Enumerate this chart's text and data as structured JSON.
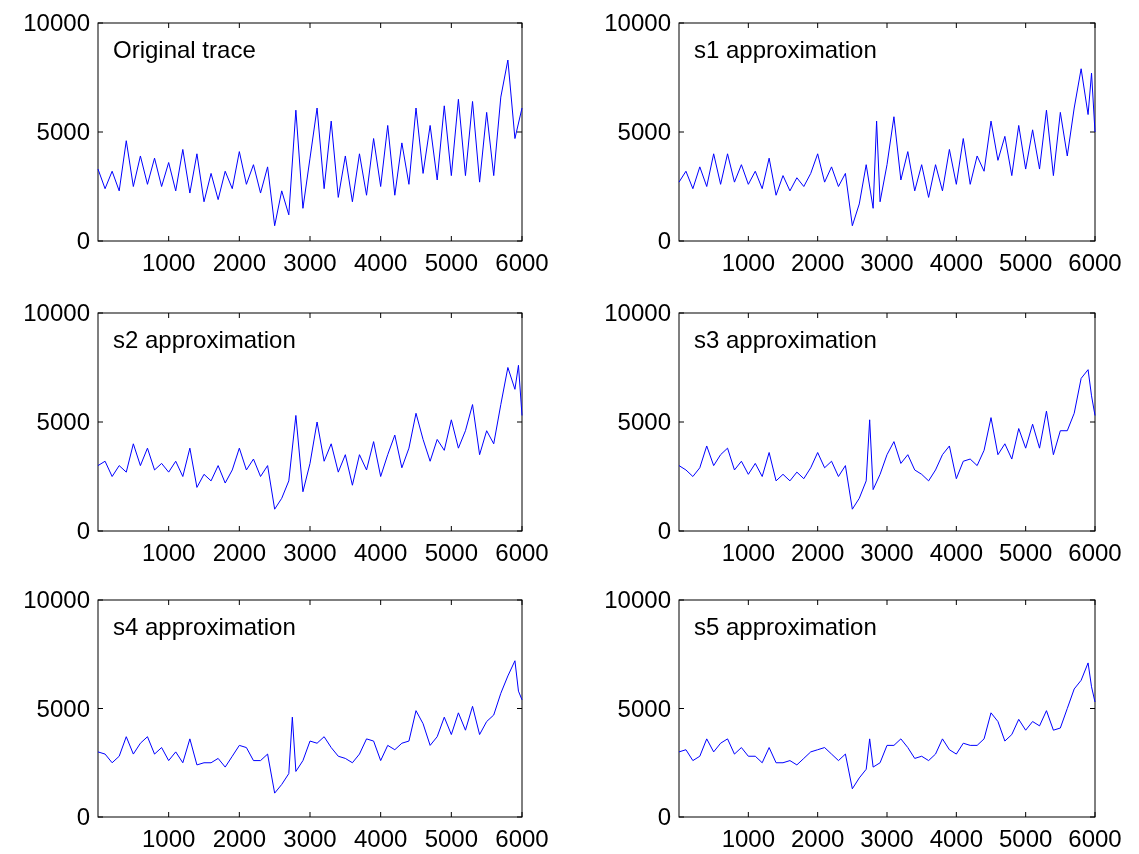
{
  "chart_data": [
    {
      "type": "line",
      "title": "Original trace",
      "xlim": [
        0,
        6000
      ],
      "xticks": [
        1000,
        2000,
        3000,
        4000,
        5000,
        6000
      ],
      "ylim": [
        0,
        10000
      ],
      "yticks": [
        0,
        5000,
        10000
      ],
      "grid": false,
      "series": [
        {
          "color": "#0000ff",
          "x": [
            0,
            100,
            200,
            300,
            400,
            500,
            600,
            700,
            800,
            900,
            1000,
            1100,
            1200,
            1300,
            1400,
            1500,
            1600,
            1700,
            1800,
            1900,
            2000,
            2100,
            2200,
            2300,
            2400,
            2500,
            2600,
            2700,
            2800,
            2900,
            3000,
            3100,
            3200,
            3300,
            3400,
            3500,
            3600,
            3700,
            3800,
            3900,
            4000,
            4100,
            4200,
            4300,
            4400,
            4500,
            4600,
            4700,
            4800,
            4900,
            5000,
            5100,
            5200,
            5300,
            5400,
            5500,
            5600,
            5700,
            5800,
            5900,
            6000
          ],
          "values": [
            3300,
            2400,
            3200,
            2300,
            4600,
            2500,
            3900,
            2600,
            3800,
            2500,
            3600,
            2300,
            4200,
            2200,
            4000,
            1800,
            3100,
            1900,
            3200,
            2400,
            4100,
            2600,
            3500,
            2200,
            3400,
            700,
            2300,
            1200,
            6000,
            1500,
            3800,
            6100,
            2400,
            5500,
            2000,
            3900,
            1800,
            4000,
            2100,
            4700,
            2500,
            5300,
            2100,
            4500,
            2600,
            6100,
            3100,
            5300,
            2800,
            6200,
            3000,
            6500,
            3000,
            6400,
            2700,
            5900,
            3000,
            6600,
            8300,
            4700,
            6100
          ]
        }
      ]
    },
    {
      "type": "line",
      "title": "s1 approximation",
      "xlim": [
        0,
        6000
      ],
      "xticks": [
        1000,
        2000,
        3000,
        4000,
        5000,
        6000
      ],
      "ylim": [
        0,
        10000
      ],
      "yticks": [
        0,
        5000,
        10000
      ],
      "grid": false,
      "series": [
        {
          "color": "#0000ff",
          "x": [
            0,
            100,
            200,
            300,
            400,
            500,
            600,
            700,
            800,
            900,
            1000,
            1100,
            1200,
            1300,
            1400,
            1500,
            1600,
            1700,
            1800,
            1900,
            2000,
            2100,
            2200,
            2300,
            2400,
            2500,
            2600,
            2700,
            2800,
            2850,
            2900,
            3000,
            3100,
            3200,
            3300,
            3400,
            3500,
            3600,
            3700,
            3800,
            3900,
            4000,
            4100,
            4200,
            4300,
            4400,
            4500,
            4600,
            4700,
            4800,
            4900,
            5000,
            5100,
            5200,
            5300,
            5400,
            5500,
            5600,
            5700,
            5800,
            5900,
            5950,
            6000
          ],
          "values": [
            2700,
            3200,
            2400,
            3400,
            2500,
            4000,
            2600,
            4000,
            2700,
            3500,
            2600,
            3200,
            2400,
            3800,
            2100,
            3000,
            2300,
            2900,
            2500,
            3100,
            4000,
            2700,
            3400,
            2500,
            3100,
            700,
            1700,
            3500,
            1500,
            5500,
            1800,
            3500,
            5700,
            2800,
            4100,
            2300,
            3500,
            2000,
            3500,
            2300,
            4200,
            2600,
            4700,
            2600,
            3900,
            3200,
            5500,
            3700,
            4800,
            3000,
            5300,
            3300,
            5100,
            3300,
            6000,
            3000,
            5900,
            3900,
            6100,
            7900,
            5800,
            7700,
            5000
          ]
        }
      ]
    },
    {
      "type": "line",
      "title": "s2 approximation",
      "xlim": [
        0,
        6000
      ],
      "xticks": [
        1000,
        2000,
        3000,
        4000,
        5000,
        6000
      ],
      "ylim": [
        0,
        10000
      ],
      "yticks": [
        0,
        5000,
        10000
      ],
      "grid": false,
      "series": [
        {
          "color": "#0000ff",
          "x": [
            0,
            100,
            200,
            300,
            400,
            500,
            600,
            700,
            800,
            900,
            1000,
            1100,
            1200,
            1300,
            1400,
            1500,
            1600,
            1700,
            1800,
            1900,
            2000,
            2100,
            2200,
            2300,
            2400,
            2500,
            2600,
            2700,
            2800,
            2900,
            3000,
            3100,
            3200,
            3300,
            3400,
            3500,
            3600,
            3700,
            3800,
            3900,
            4000,
            4100,
            4200,
            4300,
            4400,
            4500,
            4600,
            4700,
            4800,
            4900,
            5000,
            5100,
            5200,
            5300,
            5400,
            5500,
            5600,
            5700,
            5800,
            5900,
            5950,
            6000
          ],
          "values": [
            3000,
            3200,
            2500,
            3000,
            2700,
            4000,
            3000,
            3800,
            2800,
            3100,
            2700,
            3200,
            2500,
            3800,
            2000,
            2600,
            2300,
            3000,
            2200,
            2800,
            3800,
            2800,
            3300,
            2500,
            3000,
            1000,
            1500,
            2300,
            5300,
            1800,
            3100,
            5000,
            3200,
            4000,
            2700,
            3500,
            2100,
            3500,
            2800,
            4100,
            2500,
            3500,
            4400,
            2900,
            3800,
            5400,
            4200,
            3200,
            4200,
            3700,
            5100,
            3800,
            4600,
            5800,
            3500,
            4600,
            4000,
            5800,
            7500,
            6500,
            7600,
            5300
          ]
        }
      ]
    },
    {
      "type": "line",
      "title": "s3 approximation",
      "xlim": [
        0,
        6000
      ],
      "xticks": [
        1000,
        2000,
        3000,
        4000,
        5000,
        6000
      ],
      "ylim": [
        0,
        10000
      ],
      "yticks": [
        0,
        5000,
        10000
      ],
      "grid": false,
      "series": [
        {
          "color": "#0000ff",
          "x": [
            0,
            100,
            200,
            300,
            400,
            500,
            600,
            700,
            800,
            900,
            1000,
            1100,
            1200,
            1300,
            1400,
            1500,
            1600,
            1700,
            1800,
            1900,
            2000,
            2100,
            2200,
            2300,
            2400,
            2500,
            2600,
            2700,
            2750,
            2800,
            2900,
            3000,
            3100,
            3200,
            3300,
            3400,
            3500,
            3600,
            3700,
            3800,
            3900,
            4000,
            4100,
            4200,
            4300,
            4400,
            4500,
            4600,
            4700,
            4800,
            4900,
            5000,
            5100,
            5200,
            5300,
            5400,
            5500,
            5600,
            5700,
            5800,
            5900,
            5950,
            6000
          ],
          "values": [
            3000,
            2800,
            2500,
            2900,
            3900,
            3000,
            3500,
            3800,
            2800,
            3200,
            2600,
            3100,
            2500,
            3600,
            2300,
            2600,
            2300,
            2700,
            2400,
            2900,
            3600,
            2900,
            3200,
            2500,
            3000,
            1000,
            1500,
            2300,
            5100,
            1900,
            2600,
            3500,
            4100,
            3100,
            3500,
            2800,
            2600,
            2300,
            2800,
            3500,
            3900,
            2400,
            3200,
            3300,
            3000,
            3700,
            5200,
            3500,
            4000,
            3300,
            4700,
            3800,
            4900,
            3800,
            5500,
            3500,
            4600,
            4600,
            5400,
            7000,
            7400,
            6200,
            5300
          ]
        }
      ]
    },
    {
      "type": "line",
      "title": "s4 approximation",
      "xlim": [
        0,
        6000
      ],
      "xticks": [
        1000,
        2000,
        3000,
        4000,
        5000,
        6000
      ],
      "ylim": [
        0,
        10000
      ],
      "yticks": [
        0,
        5000,
        10000
      ],
      "grid": false,
      "series": [
        {
          "color": "#0000ff",
          "x": [
            0,
            100,
            200,
            300,
            400,
            500,
            600,
            700,
            800,
            900,
            1000,
            1100,
            1200,
            1300,
            1400,
            1500,
            1600,
            1700,
            1800,
            1900,
            2000,
            2100,
            2200,
            2300,
            2400,
            2500,
            2600,
            2700,
            2750,
            2800,
            2900,
            3000,
            3100,
            3200,
            3300,
            3400,
            3500,
            3600,
            3700,
            3800,
            3900,
            4000,
            4100,
            4200,
            4300,
            4400,
            4500,
            4600,
            4700,
            4800,
            4900,
            5000,
            5100,
            5200,
            5300,
            5400,
            5500,
            5600,
            5700,
            5800,
            5900,
            5950,
            6000
          ],
          "values": [
            3000,
            2900,
            2500,
            2800,
            3700,
            2900,
            3400,
            3700,
            2900,
            3200,
            2600,
            3000,
            2500,
            3600,
            2400,
            2500,
            2500,
            2700,
            2300,
            2800,
            3300,
            3200,
            2600,
            2600,
            2900,
            1100,
            1500,
            2000,
            4600,
            2100,
            2600,
            3500,
            3400,
            3700,
            3200,
            2800,
            2700,
            2500,
            2900,
            3600,
            3500,
            2600,
            3300,
            3100,
            3400,
            3500,
            4900,
            4300,
            3300,
            3700,
            4600,
            3800,
            4800,
            4000,
            5100,
            3800,
            4400,
            4700,
            5700,
            6500,
            7200,
            5800,
            5400
          ]
        }
      ]
    },
    {
      "type": "line",
      "title": "s5 approximation",
      "xlim": [
        0,
        6000
      ],
      "xticks": [
        1000,
        2000,
        3000,
        4000,
        5000,
        6000
      ],
      "ylim": [
        0,
        10000
      ],
      "yticks": [
        0,
        5000,
        10000
      ],
      "grid": false,
      "series": [
        {
          "color": "#0000ff",
          "x": [
            0,
            100,
            200,
            300,
            400,
            500,
            600,
            700,
            800,
            900,
            1000,
            1100,
            1200,
            1300,
            1400,
            1500,
            1600,
            1700,
            1800,
            1900,
            2000,
            2100,
            2200,
            2300,
            2400,
            2500,
            2600,
            2700,
            2750,
            2800,
            2900,
            3000,
            3100,
            3200,
            3300,
            3400,
            3500,
            3600,
            3700,
            3800,
            3900,
            4000,
            4100,
            4200,
            4300,
            4400,
            4500,
            4600,
            4700,
            4800,
            4900,
            5000,
            5100,
            5200,
            5300,
            5400,
            5500,
            5600,
            5700,
            5800,
            5900,
            5950,
            6000
          ],
          "values": [
            3000,
            3100,
            2600,
            2800,
            3600,
            3000,
            3400,
            3600,
            2900,
            3200,
            2800,
            2800,
            2500,
            3200,
            2500,
            2500,
            2600,
            2400,
            2700,
            3000,
            3100,
            3200,
            2900,
            2600,
            2900,
            1300,
            1800,
            2200,
            3600,
            2300,
            2500,
            3300,
            3300,
            3600,
            3200,
            2700,
            2800,
            2600,
            2900,
            3600,
            3100,
            2900,
            3400,
            3300,
            3300,
            3600,
            4800,
            4400,
            3500,
            3800,
            4500,
            4000,
            4400,
            4200,
            4900,
            4000,
            4100,
            5000,
            5900,
            6300,
            7100,
            6000,
            5300
          ]
        }
      ]
    }
  ]
}
